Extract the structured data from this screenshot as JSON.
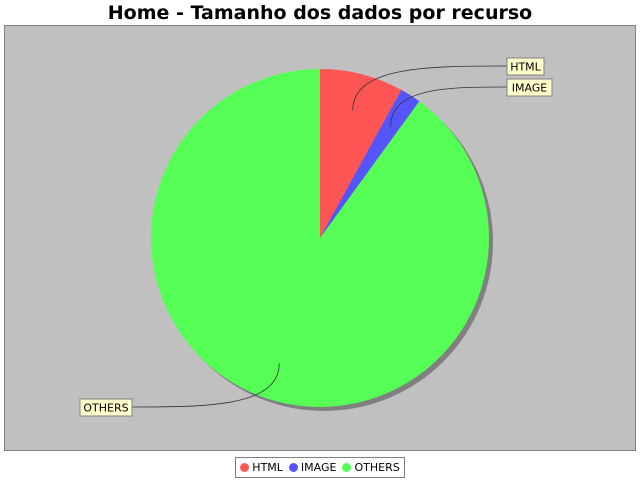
{
  "chart_data": {
    "type": "pie",
    "title": "Home - Tamanho dos dados por recurso",
    "slices": [
      {
        "label": "HTML",
        "value": 8.0,
        "color": "#ff5555"
      },
      {
        "label": "IMAGE",
        "value": 2.0,
        "color": "#5555ff"
      },
      {
        "label": "OTHERS",
        "value": 90.0,
        "color": "#55ff55"
      }
    ],
    "legend_position": "bottom",
    "background_color": "#c0c0c0",
    "label_background_color": "#ffffcc"
  }
}
